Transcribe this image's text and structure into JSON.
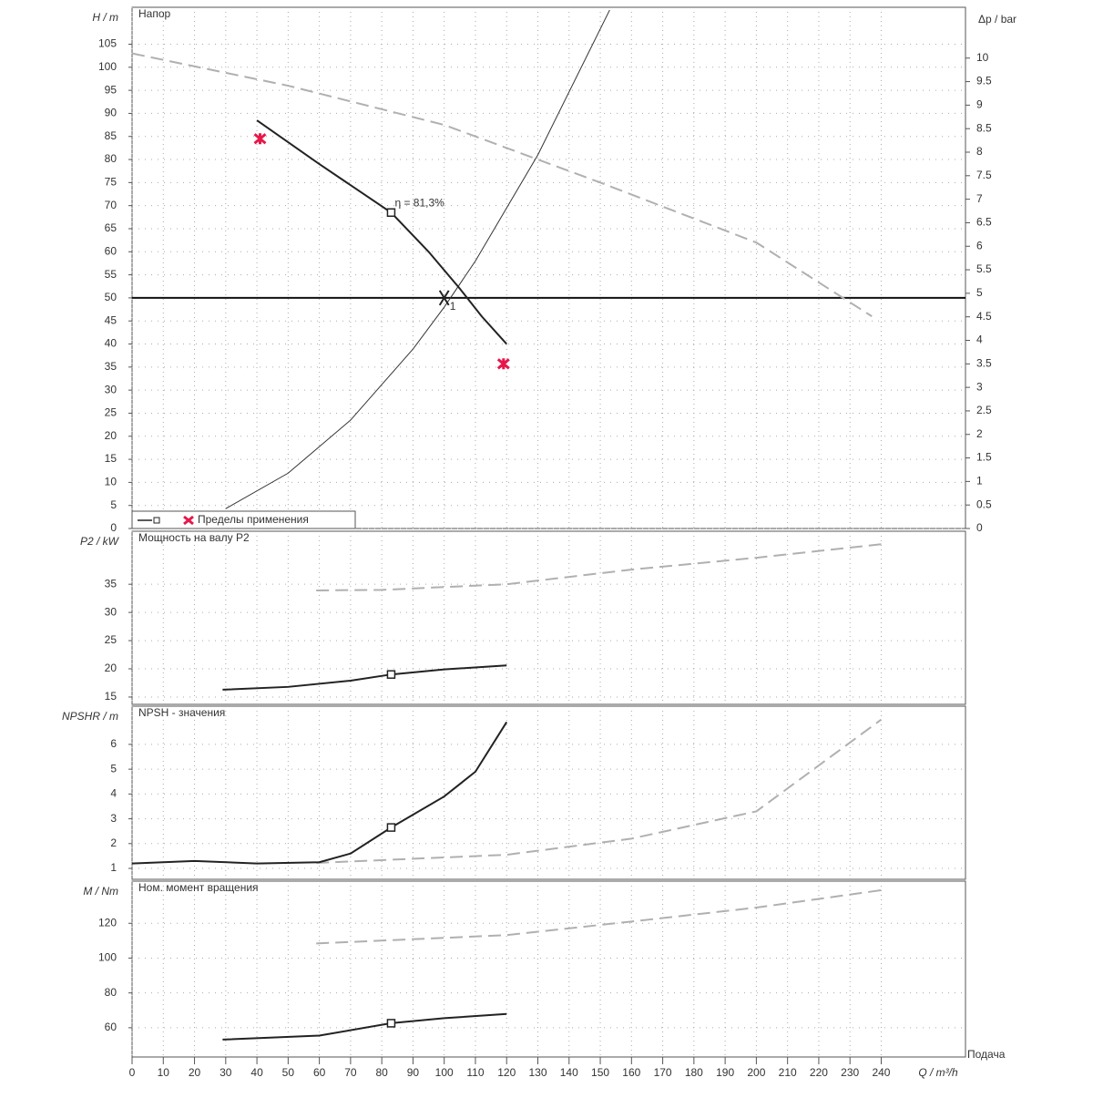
{
  "chart_data": [
    {
      "type": "line",
      "title": "Напор",
      "ylabel": "H / m",
      "y2label": "Δp / bar",
      "xlim": [
        0,
        267
      ],
      "ylim": [
        0,
        113
      ],
      "yticks": [
        0,
        5,
        10,
        15,
        20,
        25,
        30,
        35,
        40,
        45,
        50,
        55,
        60,
        65,
        70,
        75,
        80,
        85,
        90,
        95,
        100,
        105
      ],
      "y2lim": [
        0,
        11.08
      ],
      "y2ticks": [
        0,
        0.5,
        1,
        1.5,
        2,
        2.5,
        3,
        3.5,
        4,
        4.5,
        5,
        5.5,
        6,
        6.5,
        7,
        7.5,
        8,
        8.5,
        9,
        9.5,
        10
      ],
      "grid": true,
      "hline": 50,
      "legend": "lower left",
      "series": [
        {
          "color": "#b0b0b0",
          "style": "dashed",
          "x": [
            0,
            50,
            100,
            150,
            200,
            237
          ],
          "values": [
            103,
            96,
            87.5,
            75,
            62,
            46
          ]
        },
        {
          "color": "#333333",
          "style": "thin",
          "x": [
            30,
            50,
            70,
            90,
            100,
            110,
            130,
            153
          ],
          "values": [
            4.3,
            12,
            23.5,
            38.9,
            48,
            58,
            81,
            112.4
          ]
        },
        {
          "color": "#222222",
          "style": "solid",
          "x": [
            40,
            60,
            83,
            95,
            105,
            112,
            120
          ],
          "values": [
            88.5,
            79,
            68.5,
            60,
            52,
            46,
            40
          ]
        },
        {
          "color": "#222222",
          "marker": "square",
          "x": [
            83
          ],
          "values": [
            68.5
          ]
        },
        {
          "color": "#222222",
          "marker": "cross",
          "x": [
            100
          ],
          "values": [
            50
          ],
          "point_label": "1"
        },
        {
          "name": "Пределы применения",
          "color": "#e8174a",
          "marker": "star",
          "x": [
            41,
            119
          ],
          "values": [
            84.5,
            35.7
          ]
        }
      ],
      "annotation": {
        "text": "η = 81,3%",
        "x": 83,
        "y": 68.5
      }
    },
    {
      "type": "line",
      "title": "Мощность на валу P2",
      "ylabel": "P2 / kW",
      "xlim": [
        0,
        267
      ],
      "ylim": [
        13.7,
        44.4
      ],
      "yticks": [
        15,
        20,
        25,
        30,
        35
      ],
      "grid": true,
      "series": [
        {
          "color": "#b0b0b0",
          "style": "dashed",
          "x": [
            59,
            80,
            120,
            160,
            200,
            240
          ],
          "values": [
            33.9,
            34,
            35,
            37.6,
            39.7,
            42.1
          ]
        },
        {
          "color": "#222222",
          "style": "solid",
          "x": [
            29,
            50,
            70,
            83,
            100,
            120
          ],
          "values": [
            16.3,
            16.8,
            17.9,
            19,
            19.9,
            20.6
          ]
        },
        {
          "color": "#222222",
          "marker": "square",
          "x": [
            83
          ],
          "values": [
            19
          ]
        }
      ]
    },
    {
      "type": "line",
      "title": "NPSH - значения",
      "ylabel": "NPSHR / m",
      "xlim": [
        0,
        267
      ],
      "ylim": [
        0.56,
        7.54
      ],
      "yticks": [
        1,
        2,
        3,
        4,
        5,
        6
      ],
      "grid": true,
      "series": [
        {
          "color": "#b0b0b0",
          "style": "dashed",
          "x": [
            59,
            120,
            160,
            200,
            240
          ],
          "values": [
            1.22,
            1.55,
            2.2,
            3.3,
            7
          ]
        },
        {
          "color": "#222222",
          "style": "solid",
          "x": [
            0,
            20,
            40,
            60,
            70,
            83,
            100,
            110,
            120
          ],
          "values": [
            1.2,
            1.3,
            1.2,
            1.25,
            1.6,
            2.65,
            3.9,
            4.9,
            6.9
          ]
        },
        {
          "color": "#222222",
          "marker": "square",
          "x": [
            83
          ],
          "values": [
            2.65
          ]
        }
      ]
    },
    {
      "type": "line",
      "title": "Ном. момент вращения",
      "ylabel": "M / Nm",
      "xlabel": "Q / m³/h",
      "xcaption": "Подача",
      "xlim": [
        0,
        267
      ],
      "xticks": [
        0,
        10,
        20,
        30,
        40,
        50,
        60,
        70,
        80,
        90,
        100,
        110,
        120,
        130,
        140,
        150,
        160,
        170,
        180,
        190,
        200,
        210,
        220,
        230,
        240
      ],
      "ylim": [
        43.2,
        144.2
      ],
      "yticks": [
        60,
        80,
        100,
        120
      ],
      "grid": true,
      "series": [
        {
          "color": "#b0b0b0",
          "style": "dashed",
          "x": [
            59,
            120,
            160,
            200,
            240
          ],
          "values": [
            108.4,
            113.2,
            121,
            129,
            139
          ]
        },
        {
          "color": "#222222",
          "style": "solid",
          "x": [
            29,
            60,
            83,
            100,
            120
          ],
          "values": [
            53.2,
            55.5,
            62.6,
            65.5,
            67.9
          ]
        },
        {
          "color": "#222222",
          "marker": "square",
          "x": [
            83
          ],
          "values": [
            62.6
          ]
        }
      ]
    }
  ]
}
